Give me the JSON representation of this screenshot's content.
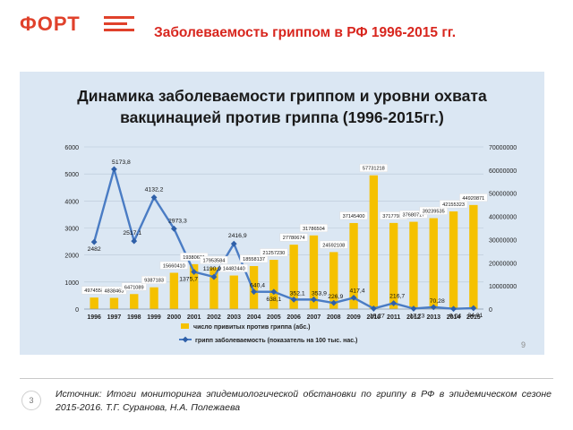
{
  "brand": {
    "logo_text": "ФОРТ",
    "accent": "#e0412b"
  },
  "slide_title": "Заболеваемость гриппом в РФ 1996-2015 гг.",
  "page_number": "9",
  "footer": {
    "page_badge": "3",
    "source": "Источник: Итоги мониторинга эпидемиологической обстановки по гриппу в РФ в эпидемическом сезоне 2015-2016. Т.Г. Суранова, Н.А. Полежаева"
  },
  "chart_data": {
    "type": "bar",
    "title_line1": "Динамика заболеваемости гриппом и уровни охвата",
    "title_line2": "вакцинацией против гриппа (1996-2015гг.)",
    "categories": [
      "1996",
      "1997",
      "1998",
      "1999",
      "2000",
      "2001",
      "2002",
      "2003",
      "2004",
      "2005",
      "2006",
      "2007",
      "2008",
      "2009",
      "2010",
      "2011",
      "2012",
      "2013",
      "2014",
      "2015"
    ],
    "left_axis": {
      "min": 0,
      "max": 6000,
      "ticks": [
        "0",
        "1000",
        "2000",
        "3000",
        "4000",
        "5000",
        "6000"
      ]
    },
    "right_axis": {
      "min": 0,
      "max": 70000000,
      "ticks": [
        "0",
        "10000000",
        "20000000",
        "30000000",
        "40000000",
        "50000000",
        "60000000",
        "70000000"
      ]
    },
    "grid": true,
    "legend_position": "bottom",
    "series": [
      {
        "name": "число привитых против гриппа (абс.)",
        "kind": "bar",
        "axis": "right",
        "color": "#f5c100",
        "values": [
          4974558,
          4838463,
          6471089,
          9387183,
          15660410,
          19380621,
          17953584,
          14482440,
          18558137,
          21257230,
          27780674,
          31786504,
          24592108,
          37145400,
          57731218,
          37177937,
          37680717,
          39239535,
          42155323,
          44920871
        ],
        "labels": [
          "4974558",
          "4838463",
          "6471089",
          "9387183",
          "15660410",
          "19380621",
          "17953584",
          "14482440",
          "18558137",
          "21257230",
          "27780674",
          "31786504",
          "24592108",
          "37145400",
          "57731218",
          "37177937",
          "37680717",
          "39239535",
          "42155323",
          "44920871"
        ]
      },
      {
        "name": "грипп заболеваемость (показатель на 100 тыс. нас.)",
        "kind": "line",
        "axis": "left",
        "color": "#4a7cc4",
        "values": [
          2482,
          5173.8,
          2517.1,
          4132.2,
          2973.3,
          1375.7,
          1190.9,
          2416.9,
          640.4,
          638.1,
          352.1,
          353.9,
          226.9,
          417.4,
          19.27,
          216.7,
          17.23,
          70.28,
          9.04,
          34.01
        ],
        "labels": [
          "2482",
          "5173,8",
          "2517,1",
          "4132,2",
          "2973,3",
          "1375,7",
          "1190,9",
          "2416,9",
          "640,4",
          "638,1",
          "352,1",
          "353,9",
          "226,9",
          "417,4",
          "19,27",
          "216,7",
          "17,23",
          "70,28",
          "9,04",
          "34,01"
        ]
      }
    ]
  }
}
